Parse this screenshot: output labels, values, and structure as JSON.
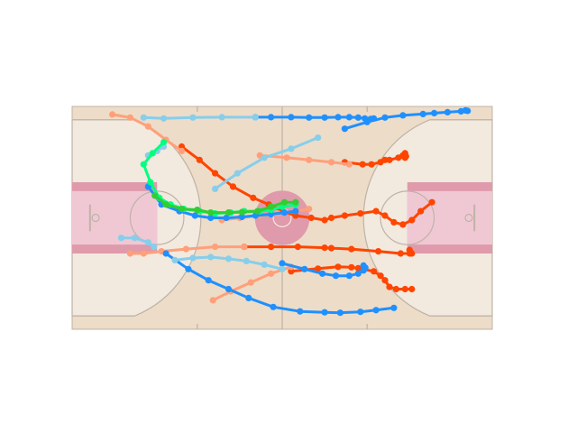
{
  "chart_data": {
    "type": "scatter",
    "title": "",
    "xlabel": "",
    "ylabel": "",
    "xlim": [
      0,
      94
    ],
    "ylim": [
      0,
      50
    ],
    "grid": false,
    "legend": "none",
    "court": {
      "floor_color": "#eddcc8",
      "halfcourt_color": "#f2e9df",
      "paint_color": "#f0c8d4",
      "paint_border_color": "#df9aab",
      "center_circle_color": "#df9aab",
      "line_color": "#bfb3a6"
    },
    "series": [
      {
        "color": "#ff4500",
        "points": [
          [
            24.5,
            41
          ],
          [
            28.5,
            38
          ],
          [
            32,
            35
          ],
          [
            36,
            32
          ],
          [
            40.5,
            29.5
          ],
          [
            44,
            28
          ],
          [
            47,
            26.5
          ],
          [
            50,
            25.5
          ],
          [
            53.5,
            25
          ],
          [
            56.5,
            24.5
          ],
          [
            58,
            25
          ],
          [
            61,
            25.5
          ],
          [
            64.5,
            26
          ],
          [
            68,
            26.5
          ],
          [
            70,
            25.5
          ],
          [
            72,
            24
          ],
          [
            74,
            23.5
          ],
          [
            76,
            24.5
          ],
          [
            78,
            26.5
          ],
          [
            80.5,
            28.5
          ]
        ]
      },
      {
        "color": "#ff4500",
        "points": [
          [
            38.5,
            18.5
          ],
          [
            44.5,
            18.5
          ],
          [
            50.5,
            18.5
          ],
          [
            56.5,
            18.3
          ],
          [
            58,
            18.2
          ],
          [
            62.5,
            18
          ],
          [
            68.5,
            17.5
          ],
          [
            73.5,
            17
          ],
          [
            75.5,
            17
          ],
          [
            75.5,
            17.8
          ],
          [
            76,
            17
          ]
        ]
      },
      {
        "color": "#ff4500",
        "points": [
          [
            49,
            13
          ],
          [
            55,
            13.6
          ],
          [
            59.5,
            14
          ],
          [
            62.5,
            13.9
          ],
          [
            64,
            13.7
          ],
          [
            67.5,
            13
          ],
          [
            69,
            12
          ],
          [
            70,
            11
          ],
          [
            71,
            9.5
          ],
          [
            72.5,
            9
          ],
          [
            74.5,
            9
          ],
          [
            76,
            9
          ]
        ]
      },
      {
        "color": "#ff4500",
        "points": [
          [
            61,
            37.5
          ],
          [
            65,
            37
          ],
          [
            67,
            37
          ],
          [
            69,
            37.5
          ],
          [
            70,
            38
          ],
          [
            71,
            38
          ],
          [
            73,
            38.5
          ],
          [
            74.5,
            38.5
          ],
          [
            74,
            39
          ],
          [
            74.5,
            39.5
          ],
          [
            74.7,
            38.8
          ]
        ]
      },
      {
        "color": "#ffa07a",
        "points": [
          [
            9,
            48.2
          ],
          [
            13,
            47.5
          ],
          [
            17,
            45.5
          ],
          [
            21,
            42.5
          ],
          [
            24.5,
            40
          ]
        ]
      },
      {
        "color": "#ffa07a",
        "points": [
          [
            42,
            39
          ],
          [
            48,
            38.5
          ],
          [
            53,
            38
          ],
          [
            58,
            37.5
          ],
          [
            62,
            37
          ]
        ]
      },
      {
        "color": "#ffa07a",
        "points": [
          [
            13,
            17
          ],
          [
            16,
            17
          ],
          [
            20,
            17.5
          ],
          [
            25.5,
            18
          ],
          [
            32,
            18.5
          ],
          [
            38.5,
            18.5
          ]
        ]
      },
      {
        "color": "#ffa07a",
        "points": [
          [
            33.5,
            24.5
          ],
          [
            37.5,
            25
          ],
          [
            42,
            25.5
          ],
          [
            46,
            26
          ],
          [
            50,
            26.5
          ],
          [
            53,
            27
          ]
        ]
      },
      {
        "color": "#ffa07a",
        "points": [
          [
            31.5,
            6.5
          ],
          [
            35.5,
            8.5
          ],
          [
            40,
            10.5
          ],
          [
            44.5,
            12.5
          ],
          [
            49,
            14
          ]
        ]
      },
      {
        "color": "#1e90ff",
        "points": [
          [
            17,
            32
          ],
          [
            20,
            28
          ],
          [
            24,
            26.5
          ],
          [
            27.5,
            25.5
          ],
          [
            31,
            25
          ],
          [
            34.5,
            25
          ],
          [
            38,
            25.2
          ],
          [
            41,
            25.5
          ],
          [
            44.5,
            25.8
          ],
          [
            47.5,
            26.2
          ],
          [
            50,
            26.5
          ]
        ]
      },
      {
        "color": "#1e90ff",
        "points": [
          [
            21,
            17
          ],
          [
            26,
            13.5
          ],
          [
            30.5,
            11
          ],
          [
            35,
            9
          ],
          [
            39.5,
            7
          ],
          [
            45,
            5
          ],
          [
            51,
            4
          ],
          [
            56.5,
            3.8
          ],
          [
            60,
            3.7
          ],
          [
            64.5,
            3.9
          ],
          [
            68,
            4.3
          ],
          [
            72,
            4.8
          ]
        ]
      },
      {
        "color": "#1e90ff",
        "points": [
          [
            47,
            14.8
          ],
          [
            52,
            13.5
          ],
          [
            56,
            12.5
          ],
          [
            59,
            12
          ],
          [
            62,
            12
          ],
          [
            64,
            12.5
          ],
          [
            65.2,
            13.2
          ],
          [
            65.6,
            13.8
          ],
          [
            65.2,
            14.3
          ]
        ]
      },
      {
        "color": "#1e90ff",
        "points": [
          [
            61,
            45
          ],
          [
            66,
            46.5
          ],
          [
            70,
            47.5
          ],
          [
            74,
            48
          ],
          [
            78.5,
            48.3
          ],
          [
            81,
            48.5
          ],
          [
            84,
            48.7
          ],
          [
            87,
            48.9
          ],
          [
            88.5,
            49
          ],
          [
            88,
            49.1
          ]
        ]
      },
      {
        "color": "#1e90ff",
        "points": [
          [
            41,
            47.6
          ],
          [
            44.5,
            47.6
          ],
          [
            49,
            47.6
          ],
          [
            53,
            47.5
          ],
          [
            56.5,
            47.5
          ],
          [
            59.5,
            47.6
          ],
          [
            62,
            47.6
          ],
          [
            64,
            47.5
          ],
          [
            65.5,
            47.3
          ],
          [
            66.8,
            47.2
          ],
          [
            67.5,
            47.3
          ]
        ]
      },
      {
        "color": "#87ceeb",
        "points": [
          [
            16,
            47.5
          ],
          [
            20.5,
            47.3
          ],
          [
            27,
            47.5
          ],
          [
            33.5,
            47.6
          ],
          [
            41,
            47.6
          ]
        ]
      },
      {
        "color": "#87ceeb",
        "points": [
          [
            32,
            31.5
          ],
          [
            37,
            35
          ],
          [
            43,
            38.5
          ],
          [
            49,
            40.5
          ],
          [
            55,
            43
          ]
        ]
      },
      {
        "color": "#87ceeb",
        "points": [
          [
            11,
            20.5
          ],
          [
            14,
            20.5
          ],
          [
            17,
            19.5
          ],
          [
            18.3,
            18.5
          ]
        ]
      },
      {
        "color": "#87ceeb",
        "points": [
          [
            23,
            15.5
          ],
          [
            27,
            16
          ],
          [
            31,
            16.2
          ],
          [
            35,
            15.8
          ],
          [
            39,
            15.3
          ],
          [
            43,
            14.5
          ],
          [
            47,
            13.5
          ]
        ]
      },
      {
        "color": "#87ceeb",
        "points": [
          [
            17,
            39
          ],
          [
            19,
            40
          ],
          [
            20.5,
            41
          ]
        ]
      },
      {
        "color": "#00ff7f",
        "points": [
          [
            20.5,
            42
          ],
          [
            18,
            39.5
          ],
          [
            16,
            37
          ],
          [
            17.5,
            33
          ],
          [
            19.5,
            29.5
          ],
          [
            22,
            28
          ],
          [
            25,
            27
          ],
          [
            28.5,
            26.5
          ],
          [
            32,
            26
          ],
          [
            35.5,
            26.2
          ],
          [
            38.5,
            26.5
          ],
          [
            42,
            26.5
          ],
          [
            44.5,
            26.8
          ],
          [
            47,
            27.5
          ],
          [
            50,
            28
          ]
        ]
      },
      {
        "color": "#32cd32",
        "points": [
          [
            18.5,
            30
          ],
          [
            21,
            28
          ],
          [
            24.5,
            27
          ],
          [
            28,
            26.8
          ],
          [
            31,
            26.2
          ],
          [
            35,
            26.2
          ],
          [
            38,
            26.3
          ],
          [
            41.5,
            26.5
          ],
          [
            44.5,
            27.5
          ],
          [
            47.5,
            28.5
          ],
          [
            50,
            28.5
          ]
        ]
      }
    ]
  }
}
